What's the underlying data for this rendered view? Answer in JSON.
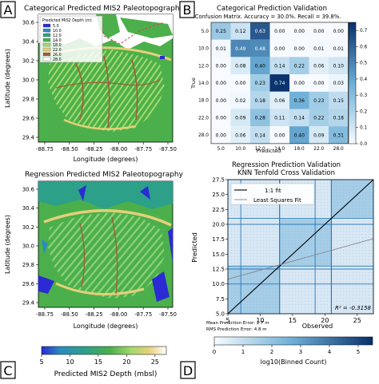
{
  "panels": {
    "A": {
      "letter": "A",
      "title": "Categorical Predicted MIS2 Paleotopography",
      "xlabel": "Longitude (degrees)",
      "ylabel": "Latitude (degrees)",
      "xticks": [
        "-88.75",
        "-88.50",
        "-88.25",
        "-88.00",
        "-87.75",
        "-87.50"
      ],
      "yticks": [
        "30.6",
        "30.4",
        "30.2",
        "30.0",
        "29.8",
        "29.6",
        "29.4"
      ],
      "legend_title": "Predicted MIS2 Depth (m)",
      "legend": [
        {
          "label": "5.0",
          "color": "#2a2bd4"
        },
        {
          "label": "10.0",
          "color": "#2b8cbe"
        },
        {
          "label": "12.0",
          "color": "#2ca089"
        },
        {
          "label": "14.0",
          "color": "#4bb04b"
        },
        {
          "label": "18.0",
          "color": "#a5d96a"
        },
        {
          "label": "22.0",
          "color": "#e6cf7a"
        },
        {
          "label": "26.0",
          "color": "#a05a3a"
        },
        {
          "label": "28.0",
          "color": "#ffffff"
        }
      ]
    },
    "B": {
      "letter": "B",
      "title": "Categorical Prediction Validation",
      "subtitle": "Confusion Matrix.  Accuracy = 30.0%.  Recall = 39.8%.",
      "xlabel": "Predicted",
      "ylabel": "True",
      "colorbar_ticks": [
        "0.7",
        "0.6",
        "0.5",
        "0.4",
        "0.3",
        "0.2",
        "0.1",
        "0.0"
      ]
    },
    "C": {
      "letter": "C",
      "title": "Regression Predicted MIS2 Paleotopography",
      "xlabel": "Longitude (degrees)",
      "ylabel": "Latitude (degrees)",
      "xticks": [
        "-88.75",
        "-88.50",
        "-88.25",
        "-88.00",
        "-87.75",
        "-87.50"
      ],
      "yticks": [
        "30.6",
        "30.4",
        "30.2",
        "30.0",
        "29.8",
        "29.6",
        "29.4"
      ],
      "colorbar_ticks": [
        "5",
        "10",
        "15",
        "20",
        "25"
      ],
      "colorbar_label": "Predicted MIS2 Depth (mbsl)"
    },
    "D": {
      "letter": "D",
      "title": "Regression Prediction Validation",
      "subtitle": "KNN Tenfold Cross Validation",
      "xlabel": "Observed",
      "ylabel": "Predicted",
      "legend_fit": "1:1 fit",
      "legend_lsq": "Least Squares Fit",
      "r2": "R² = -0.3158",
      "mean_error": "Mean Prediction Error: 2.7 m",
      "rms_error": "RMS Prediction Error: 4.8 m",
      "colorbar_ticks": [
        "0",
        "1",
        "2",
        "3",
        "4",
        "5"
      ],
      "colorbar_label": "log10(Binned Count)"
    }
  },
  "colors": {
    "accent_dark": "#08306b",
    "land": "#4bb04b",
    "shallow": "#a5d96a",
    "deep": "#2a2bd4",
    "boundary": "#e0405a"
  },
  "chart_data": [
    {
      "type": "heatmap",
      "title": "Categorical Prediction Validation",
      "subtitle": "Confusion Matrix.  Accuracy = 30.0%.  Recall = 39.8%.",
      "xlabel": "Predicted",
      "ylabel": "True",
      "x_categories": [
        "5.0",
        "10.0",
        "12.0",
        "14.0",
        "18.0",
        "22.0",
        "28.0"
      ],
      "y_categories": [
        "5.0",
        "10.0",
        "12.0",
        "14.0",
        "18.0",
        "22.0",
        "28.0"
      ],
      "values": [
        [
          0.25,
          0.12,
          0.63,
          0.0,
          0.0,
          0.0,
          0.0
        ],
        [
          0.01,
          0.49,
          0.48,
          0.0,
          0.0,
          0.01,
          0.01
        ],
        [
          0.0,
          0.08,
          0.4,
          0.14,
          0.22,
          0.06,
          0.1
        ],
        [
          0.0,
          0.0,
          0.23,
          0.74,
          0.0,
          0.0,
          0.03
        ],
        [
          0.0,
          0.02,
          0.18,
          0.06,
          0.36,
          0.23,
          0.15
        ],
        [
          0.0,
          0.09,
          0.28,
          0.11,
          0.14,
          0.22,
          0.18
        ],
        [
          0.0,
          0.06,
          0.14,
          0.0,
          0.4,
          0.09,
          0.31
        ]
      ],
      "vmin": 0,
      "vmax": 0.75
    },
    {
      "type": "scatter",
      "title": "Regression Prediction Validation",
      "subtitle": "KNN Tenfold Cross Validation",
      "xlabel": "Observed",
      "ylabel": "Predicted",
      "xlim": [
        5,
        27.5
      ],
      "ylim": [
        5,
        27.5
      ],
      "xticks": [
        5,
        10,
        15,
        20,
        25
      ],
      "yticks": [
        5.0,
        7.5,
        10.0,
        12.5,
        15.0,
        17.5,
        20.0,
        22.5,
        25.0,
        27.5
      ],
      "series": [
        {
          "name": "1:1 fit",
          "x": [
            5,
            27.5
          ],
          "y": [
            5,
            27.5
          ]
        },
        {
          "name": "Least Squares Fit",
          "x": [
            5,
            27.5
          ],
          "y": [
            10.8,
            17.6
          ]
        }
      ],
      "r2": -0.3158,
      "mean_prediction_error_m": 2.7,
      "rms_prediction_error_m": 4.8,
      "colorbar": {
        "label": "log10(Binned Count)",
        "range": [
          0,
          5.5
        ]
      }
    }
  ]
}
